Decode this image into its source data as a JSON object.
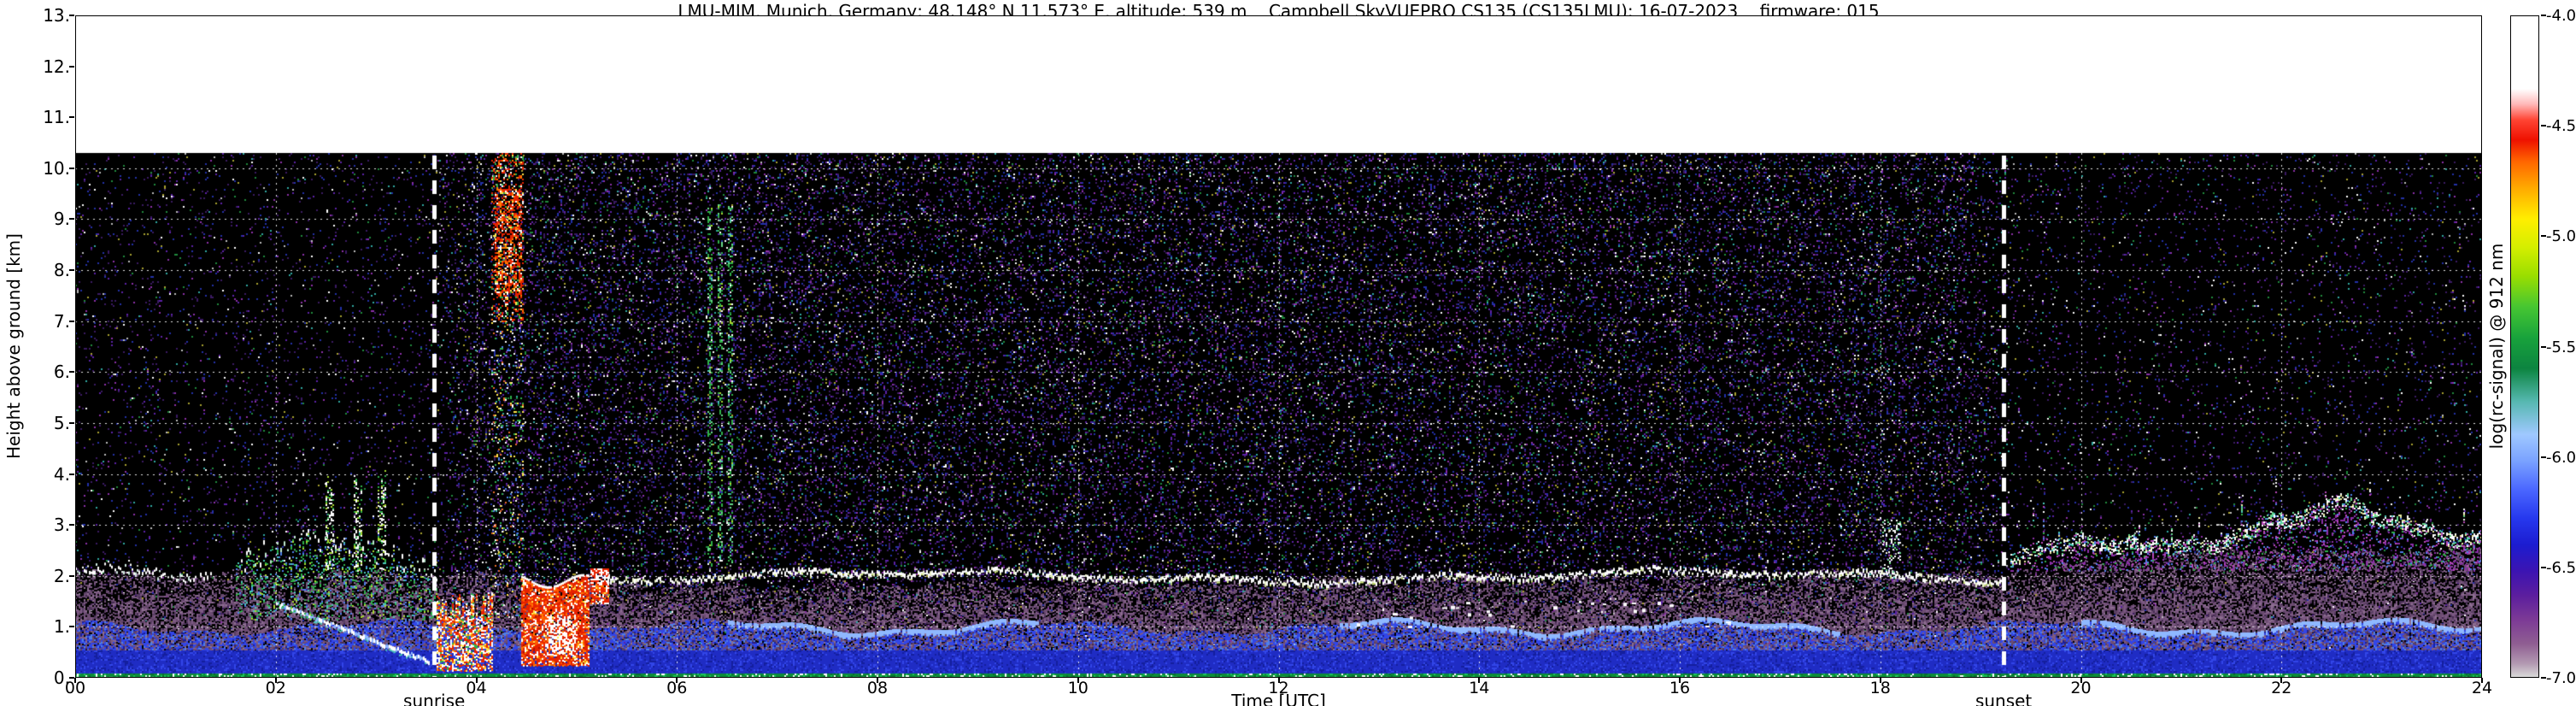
{
  "chart_data": {
    "type": "heatmap",
    "title": "LMU-MIM, Munich, Germany; 48.148° N 11.573° E, altitude: 539 m    Campbell SkyVUEPRO CS135 (CS135LMU): 16-07-2023    firmware: 015",
    "xlabel": "Time [UTC]",
    "ylabel": "Height above ground [km]",
    "colorbar_label": "log(rc-signal) @ 912 nm",
    "xlim": [
      0,
      24
    ],
    "ylim": [
      0,
      13
    ],
    "colorbar_range": [
      -7.0,
      -4.0
    ],
    "data_max_height_km": 10.3,
    "grid": "white dotted, every 1 km and every 2 h",
    "x_ticks": {
      "values": [
        0,
        2,
        4,
        6,
        8,
        10,
        12,
        14,
        16,
        18,
        20,
        22,
        24
      ],
      "labels": [
        "00",
        "02",
        "04",
        "06",
        "08",
        "10",
        "12",
        "14",
        "16",
        "18",
        "20",
        "22",
        "24"
      ]
    },
    "y_ticks": {
      "values": [
        0,
        1,
        2,
        3,
        4,
        5,
        6,
        7,
        8,
        9,
        10,
        11,
        12,
        13
      ],
      "labels": [
        "0.",
        "1.",
        "2.",
        "3.",
        "4.",
        "5.",
        "6.",
        "7.",
        "8.",
        "9.",
        "10.",
        "11.",
        "12.",
        "13."
      ]
    },
    "colorbar_ticks": {
      "values": [
        -4.0,
        -4.5,
        -5.0,
        -5.5,
        -6.0,
        -6.5,
        -7.0
      ],
      "labels": [
        "-4.0",
        "-4.5",
        "-5.0",
        "-5.5",
        "-6.0",
        "-6.5",
        "-7.0"
      ]
    },
    "colormap": [
      [
        -4.0,
        "#ffffff"
      ],
      [
        -4.33,
        "#ffffff"
      ],
      [
        -4.4,
        "#ffb9b9"
      ],
      [
        -4.47,
        "#ff4433"
      ],
      [
        -4.56,
        "#ee1100"
      ],
      [
        -4.66,
        "#ff6600"
      ],
      [
        -4.78,
        "#ffaa00"
      ],
      [
        -4.92,
        "#ffee00"
      ],
      [
        -5.05,
        "#d4ee00"
      ],
      [
        -5.18,
        "#9ade00"
      ],
      [
        -5.32,
        "#46c632"
      ],
      [
        -5.46,
        "#18a23c"
      ],
      [
        -5.6,
        "#0c8440"
      ],
      [
        -5.75,
        "#56b8b0"
      ],
      [
        -5.9,
        "#9fc8ff"
      ],
      [
        -6.02,
        "#7aa2ff"
      ],
      [
        -6.15,
        "#4a66ff"
      ],
      [
        -6.28,
        "#2638ee"
      ],
      [
        -6.4,
        "#1c1cd0"
      ],
      [
        -6.52,
        "#3c14b2"
      ],
      [
        -6.63,
        "#5c1e9e"
      ],
      [
        -6.74,
        "#7c3a96"
      ],
      [
        -6.85,
        "#8f5e92"
      ],
      [
        -6.94,
        "#b39ab2"
      ],
      [
        -7.0,
        "#d9d9d9"
      ]
    ],
    "annotations": [
      {
        "label": "sunrise",
        "t": 3.58,
        "type": "dashed-white-vline"
      },
      {
        "label": "sunset",
        "t": 19.23,
        "type": "dashed-white-vline"
      }
    ],
    "features": {
      "palette": {
        "red": "#e62200",
        "dark_red": "#aa1100",
        "orange": "#ff7a00",
        "yellow": "#ffe84a",
        "green": "#2fb04a",
        "light_green": "#67d98a",
        "lime": "#a8d92f",
        "cyan": "#49c9b8",
        "blue": "#3246e8",
        "mid_blue": "#4f7fe8",
        "light_blue": "#8fb8ff",
        "white": "#ffffff",
        "magenta": "#b84ab8",
        "violet": "#8b2fa8",
        "pale_yellow": "#e8e8a0"
      },
      "background_noise": {
        "night_density": 0.05,
        "day_density": 0.16,
        "speckle": [
          [
            "#3a1a62",
            0.36
          ],
          [
            "#2330a8",
            0.2
          ],
          [
            "#5b21a8",
            0.12
          ],
          [
            "#8b2fa8",
            0.08
          ],
          [
            "#1f8a3c",
            0.06
          ],
          [
            "#2fa8a0",
            0.04
          ],
          [
            "#a8a12f",
            0.04
          ],
          [
            "#bbbbbb",
            0.05
          ],
          [
            "#ffffff",
            0.05
          ]
        ]
      },
      "boundary_layer": {
        "top_km": [
          [
            0,
            2.05
          ],
          [
            4,
            2.0
          ],
          [
            6,
            1.82
          ],
          [
            12,
            1.9
          ],
          [
            19,
            2.05
          ],
          [
            21,
            2.45
          ],
          [
            24,
            2.55
          ]
        ],
        "speckle": [
          [
            "#6d4d72",
            0.32
          ],
          [
            "#7d5a84",
            0.24
          ],
          [
            "#593f63",
            0.2
          ],
          [
            "#8d6f91",
            0.14
          ],
          [
            "#452b52",
            0.1
          ]
        ]
      },
      "blue_layer": {
        "top_km": 1.0,
        "solid_km": 0.55,
        "light_cap_times": [
          [
            6.5,
            9.6
          ],
          [
            12.6,
            17.6
          ],
          [
            20.0,
            24.0
          ]
        ]
      },
      "surface_layer": {
        "top_km": 0.1,
        "color": "#0d8c3a"
      },
      "aerosol_layer_2km": {
        "t": [
          5.3,
          19.25
        ],
        "base_km": 1.98
      },
      "descending_streak": {
        "t": [
          2.0,
          3.52
        ],
        "km": [
          1.5,
          0.35
        ]
      },
      "morning_tops": {
        "early_t": [
          0,
          1.35
        ],
        "early_km": 2.08,
        "late_t": [
          1.6,
          3.6
        ]
      },
      "morning_spikes": [
        2.5,
        2.78,
        3.02
      ],
      "cloud_event": {
        "low_cloud_t": [
          3.6,
          4.15
        ],
        "streaks_t": [
          4.15,
          4.62
        ],
        "high_red_t": [
          4.18,
          4.45
        ],
        "high_red_km": [
          7.5,
          9.6
        ],
        "precip_t": [
          4.45,
          5.12
        ],
        "precip_km": [
          0.25,
          1.9
        ],
        "blob_t": [
          5.14,
          5.32
        ],
        "blob_km": [
          1.45,
          2.15
        ]
      },
      "green_streaks": {
        "centers_t": [
          6.33,
          6.43,
          6.53
        ],
        "km": [
          2.2,
          9.3
        ]
      },
      "post18_plume": {
        "t": [
          18.02,
          18.2
        ],
        "km": [
          2.0,
          3.15
        ]
      },
      "midday_cumulus": {
        "t": [
          10.5,
          17.5
        ],
        "km": [
          1.0,
          1.6
        ]
      },
      "evening_aerosol": {
        "t": [
          19.3,
          24
        ],
        "top_start_km": 2.3,
        "top_max_km": 3.15
      }
    }
  }
}
